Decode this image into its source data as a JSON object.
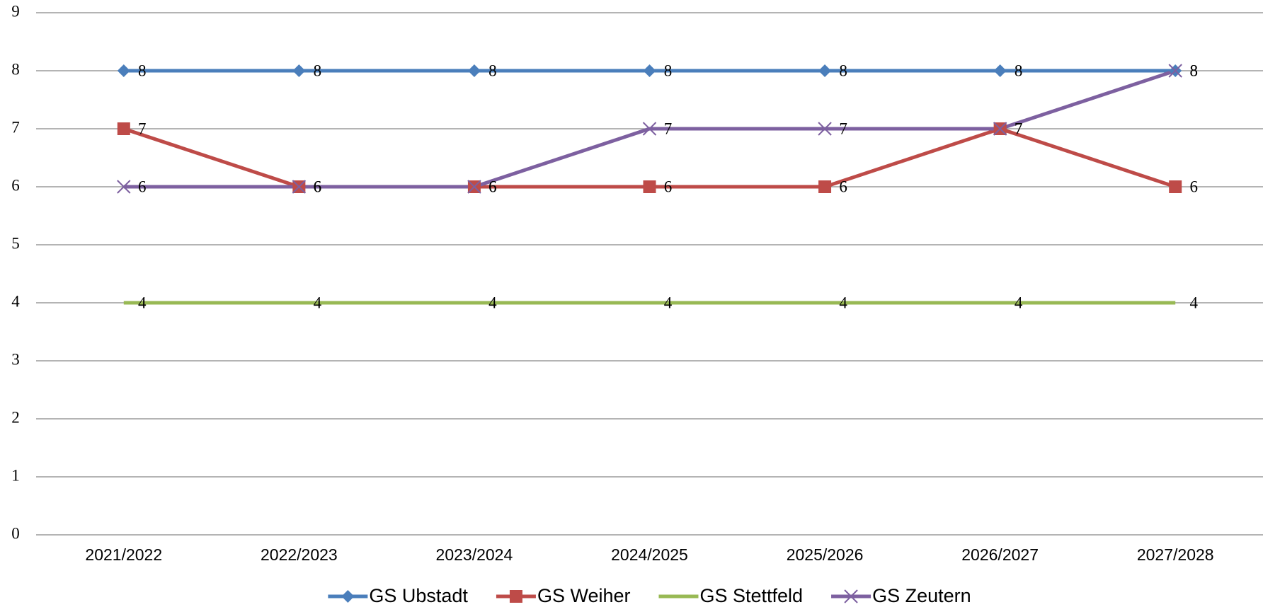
{
  "chart_data": {
    "type": "line",
    "categories": [
      "2021/2022",
      "2022/2023",
      "2023/2024",
      "2024/2025",
      "2025/2026",
      "2026/2027",
      "2027/2028"
    ],
    "series": [
      {
        "name": "GS Ubstadt",
        "color": "#4a7ebb",
        "marker": "diamond",
        "values": [
          8,
          8,
          8,
          8,
          8,
          8,
          8
        ]
      },
      {
        "name": "GS Weiher",
        "color": "#be4b48",
        "marker": "square",
        "values": [
          7,
          6,
          6,
          6,
          6,
          7,
          6
        ]
      },
      {
        "name": "GS Stettfeld",
        "color": "#98b954",
        "marker": "none",
        "values": [
          4,
          4,
          4,
          4,
          4,
          4,
          4
        ]
      },
      {
        "name": "GS Zeutern",
        "color": "#7d60a0",
        "marker": "x",
        "values": [
          6,
          6,
          6,
          7,
          7,
          7,
          8
        ]
      }
    ],
    "ylim": [
      0,
      9
    ],
    "yticks": [
      0,
      1,
      2,
      3,
      4,
      5,
      6,
      7,
      8,
      9
    ],
    "grid": true,
    "legend": "bottom"
  }
}
